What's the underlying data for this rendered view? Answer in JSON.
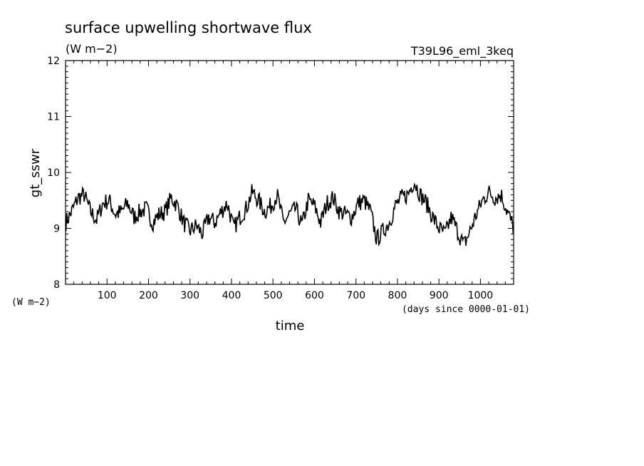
{
  "chart_data": {
    "type": "line",
    "title": "surface upwelling shortwave flux",
    "units": "(W m−2)",
    "experiment": "T39L96_eml_3keq",
    "ylabel": "gt_sswr",
    "yunits": "(W m−2)",
    "xlabel": "time",
    "xunits": "(days since 0000-01-01)",
    "xlim": [
      0,
      1080
    ],
    "ylim": [
      8,
      12
    ],
    "xticks": [
      100,
      200,
      300,
      400,
      500,
      600,
      700,
      800,
      900,
      1000
    ],
    "yticks": [
      8,
      9,
      10,
      11,
      12
    ],
    "grid": false,
    "series": [
      {
        "color": "#000000",
        "x": [
          0,
          15,
          30,
          45,
          60,
          75,
          90,
          105,
          120,
          135,
          150,
          165,
          180,
          195,
          210,
          225,
          240,
          255,
          270,
          285,
          300,
          315,
          330,
          345,
          360,
          375,
          390,
          405,
          420,
          435,
          450,
          465,
          480,
          495,
          510,
          525,
          540,
          555,
          570,
          585,
          600,
          615,
          630,
          645,
          660,
          675,
          690,
          705,
          720,
          735,
          750,
          765,
          780,
          795,
          810,
          825,
          840,
          855,
          870,
          885,
          900,
          915,
          930,
          945,
          960,
          975,
          990,
          1005,
          1020,
          1035,
          1050,
          1065,
          1080
        ],
        "values": [
          9.1,
          9.3,
          9.55,
          9.6,
          9.3,
          9.15,
          9.45,
          9.5,
          9.25,
          9.3,
          9.45,
          9.2,
          9.3,
          9.35,
          9.1,
          9.25,
          9.3,
          9.55,
          9.4,
          9.1,
          8.95,
          9.05,
          8.9,
          9.2,
          9.1,
          9.3,
          9.45,
          9.0,
          9.2,
          9.35,
          9.65,
          9.5,
          9.3,
          9.4,
          9.6,
          9.1,
          9.25,
          9.35,
          9.05,
          9.5,
          9.4,
          9.1,
          9.45,
          9.55,
          9.3,
          9.25,
          9.2,
          9.45,
          9.5,
          9.3,
          8.8,
          8.95,
          9.1,
          9.4,
          9.55,
          9.6,
          9.85,
          9.6,
          9.45,
          9.2,
          9.0,
          8.9,
          9.2,
          8.95,
          8.7,
          8.95,
          9.25,
          9.5,
          9.65,
          9.55,
          9.6,
          9.3,
          9.0
        ]
      }
    ]
  }
}
